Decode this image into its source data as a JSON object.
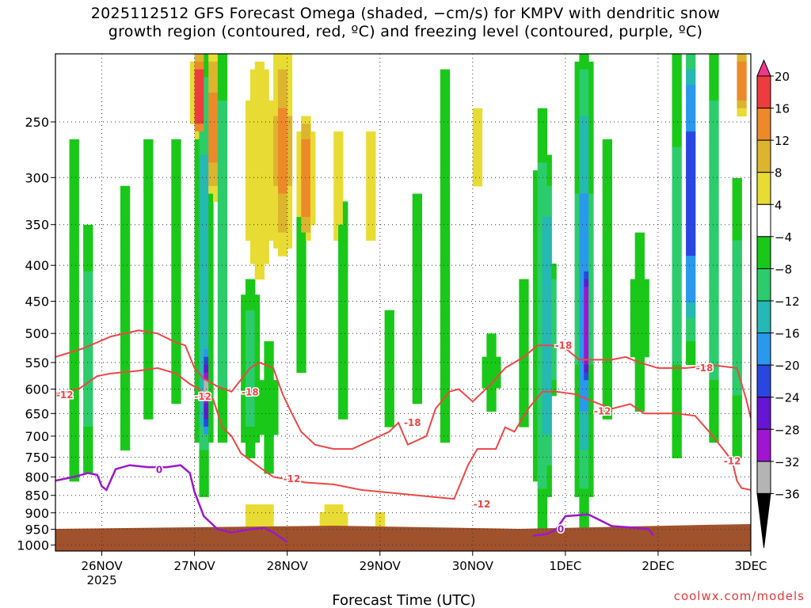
{
  "title": {
    "line1": "2025112512 GFS Forecast Omega (shaded, −cm/s) for KMPV with dendritic snow",
    "line2": "growth region (contoured, red, ºC) and freezing level (contoured, purple, ºC)"
  },
  "credit": "coolwx.com/models",
  "chart_data": {
    "type": "heatmap",
    "xlabel": "Forecast Time (UTC)",
    "x_range": [
      -0.5,
      7.0
    ],
    "x_ticks": [
      {
        "day": 0,
        "label": "26NOV",
        "sublabel": "2025"
      },
      {
        "day": 1,
        "label": "27NOV",
        "sublabel": ""
      },
      {
        "day": 2,
        "label": "28NOV",
        "sublabel": ""
      },
      {
        "day": 3,
        "label": "29NOV",
        "sublabel": ""
      },
      {
        "day": 4,
        "label": "30NOV",
        "sublabel": ""
      },
      {
        "day": 5,
        "label": "1DEC",
        "sublabel": ""
      },
      {
        "day": 6,
        "label": "2DEC",
        "sublabel": ""
      },
      {
        "day": 7,
        "label": "3DEC",
        "sublabel": ""
      }
    ],
    "ylabel": "",
    "y_scale": "log-pressure",
    "y_range_hpa": [
      200,
      1020
    ],
    "y_ticks": [
      250,
      300,
      350,
      400,
      450,
      500,
      550,
      600,
      650,
      700,
      750,
      800,
      850,
      900,
      950,
      1000
    ],
    "grid": true,
    "colorbar": {
      "position": "right",
      "ticks": [
        "20",
        "16",
        "12",
        "8",
        "4",
        "−4",
        "−8",
        "−12",
        "−16",
        "−20",
        "−24",
        "−28",
        "−32",
        "−36"
      ],
      "bins": [
        {
          "range": "20+",
          "color": "#f0368c"
        },
        {
          "range": "16 to 20",
          "color": "#ee3c3c"
        },
        {
          "range": "12 to 16",
          "color": "#ec8a2a"
        },
        {
          "range": "8 to 12",
          "color": "#dcb42e"
        },
        {
          "range": "4 to 8",
          "color": "#e8dc34"
        },
        {
          "range": "-4 to 4",
          "color": "#ffffff"
        },
        {
          "range": "-8 to -4",
          "color": "#19c819"
        },
        {
          "range": "-12 to -8",
          "color": "#2ccc6c"
        },
        {
          "range": "-16 to -12",
          "color": "#26b8b2"
        },
        {
          "range": "-20 to -16",
          "color": "#2a98ec"
        },
        {
          "range": "-24 to -20",
          "color": "#2a46e0"
        },
        {
          "range": "-28 to -24",
          "color": "#6416d2"
        },
        {
          "range": "-32 to -28",
          "color": "#a014d2"
        },
        {
          "range": "-36 to -32",
          "color": "#b4b4b4"
        },
        {
          "range": "< -36",
          "color": "#000000"
        }
      ]
    },
    "omega_features": [
      {
        "day": -0.3,
        "p_top": 250,
        "p_bot": 850,
        "w": 0.08,
        "val": -8
      },
      {
        "day": -0.15,
        "p_top": 350,
        "p_bot": 800,
        "w": 0.05,
        "val": -12
      },
      {
        "day": 0.25,
        "p_top": 300,
        "p_bot": 750,
        "w": 0.08,
        "val": -8
      },
      {
        "day": 0.5,
        "p_top": 250,
        "p_bot": 700,
        "w": 0.07,
        "val": -8
      },
      {
        "day": 0.8,
        "p_top": 250,
        "p_bot": 650,
        "w": 0.07,
        "val": -8
      },
      {
        "day": 1.1,
        "p_top": 200,
        "p_bot": 800,
        "w": 0.09,
        "val": -14
      },
      {
        "day": 1.1,
        "p_top": 450,
        "p_bot": 750,
        "w": 0.04,
        "val": -22
      },
      {
        "day": 1.12,
        "p_top": 520,
        "p_bot": 700,
        "w": 0.02,
        "val": -30
      },
      {
        "day": 1.12,
        "p_top": 550,
        "p_bot": 650,
        "w": 0.012,
        "val": -40
      },
      {
        "day": 1.3,
        "p_top": 200,
        "p_bot": 700,
        "w": 0.07,
        "val": -12
      },
      {
        "day": 1.6,
        "p_top": 420,
        "p_bot": 750,
        "w": 0.12,
        "val": -10
      },
      {
        "day": 1.8,
        "p_top": 500,
        "p_bot": 800,
        "w": 0.1,
        "val": -8
      },
      {
        "day": 2.15,
        "p_top": 300,
        "p_bot": 600,
        "w": 0.05,
        "val": -8
      },
      {
        "day": 2.6,
        "p_top": 300,
        "p_bot": 700,
        "w": 0.05,
        "val": -8
      },
      {
        "day": 3.1,
        "p_top": 450,
        "p_bot": 700,
        "w": 0.06,
        "val": -8
      },
      {
        "day": 3.4,
        "p_top": 300,
        "p_bot": 650,
        "w": 0.06,
        "val": -8
      },
      {
        "day": 3.7,
        "p_top": 200,
        "p_bot": 760,
        "w": 0.07,
        "val": -8
      },
      {
        "day": 4.2,
        "p_top": 500,
        "p_bot": 650,
        "w": 0.1,
        "val": -8
      },
      {
        "day": 4.55,
        "p_top": 400,
        "p_bot": 700,
        "w": 0.06,
        "val": -8
      },
      {
        "day": 4.75,
        "p_top": 250,
        "p_bot": 950,
        "w": 0.09,
        "val": -12
      },
      {
        "day": 4.8,
        "p_top": 300,
        "p_bot": 800,
        "w": 0.05,
        "val": -20
      },
      {
        "day": 4.85,
        "p_top": 400,
        "p_bot": 600,
        "w": 0.03,
        "val": -26
      },
      {
        "day": 5.2,
        "p_top": 200,
        "p_bot": 880,
        "w": 0.1,
        "val": -16
      },
      {
        "day": 5.2,
        "p_top": 250,
        "p_bot": 800,
        "w": 0.06,
        "val": -22
      },
      {
        "day": 5.2,
        "p_top": 350,
        "p_bot": 700,
        "w": 0.035,
        "val": -30
      },
      {
        "day": 5.22,
        "p_top": 400,
        "p_bot": 600,
        "w": 0.018,
        "val": -34
      },
      {
        "day": 5.22,
        "p_top": 430,
        "p_bot": 560,
        "w": 0.01,
        "val": -40
      },
      {
        "day": 5.45,
        "p_top": 250,
        "p_bot": 700,
        "w": 0.06,
        "val": -8
      },
      {
        "day": 5.8,
        "p_top": 350,
        "p_bot": 650,
        "w": 0.1,
        "val": -8
      },
      {
        "day": 6.2,
        "p_top": 200,
        "p_bot": 750,
        "w": 0.07,
        "val": -10
      },
      {
        "day": 6.35,
        "p_top": 200,
        "p_bot": 500,
        "w": 0.05,
        "val": -28
      },
      {
        "day": 6.6,
        "p_top": 200,
        "p_bot": 700,
        "w": 0.06,
        "val": -12
      },
      {
        "day": 6.6,
        "p_top": 200,
        "p_bot": 420,
        "w": 0.03,
        "val": -20
      },
      {
        "day": 6.85,
        "p_top": 300,
        "p_bot": 750,
        "w": 0.07,
        "val": -10
      },
      {
        "day": 1.05,
        "p_top": 200,
        "p_bot": 260,
        "w": 0.07,
        "val": 22
      },
      {
        "day": 1.2,
        "p_top": 200,
        "p_bot": 320,
        "w": 0.08,
        "val": 14
      },
      {
        "day": 1.7,
        "p_top": 200,
        "p_bot": 420,
        "w": 0.18,
        "val": 8
      },
      {
        "day": 1.95,
        "p_top": 200,
        "p_bot": 380,
        "w": 0.12,
        "val": 13
      },
      {
        "day": 2.2,
        "p_top": 250,
        "p_bot": 360,
        "w": 0.08,
        "val": 17
      },
      {
        "day": 2.55,
        "p_top": 250,
        "p_bot": 380,
        "w": 0.12,
        "val": 6
      },
      {
        "day": 2.9,
        "p_top": 250,
        "p_bot": 380,
        "w": 0.1,
        "val": 6
      },
      {
        "day": 4.05,
        "p_top": 220,
        "p_bot": 330,
        "w": 0.05,
        "val": 6
      },
      {
        "day": 4.5,
        "p_top": 220,
        "p_bot": 330,
        "w": 0.02,
        "val": 17
      },
      {
        "day": 6.35,
        "p_top": 200,
        "p_bot": 230,
        "w": 0.04,
        "val": 14
      },
      {
        "day": 6.9,
        "p_top": 200,
        "p_bot": 240,
        "w": 0.05,
        "val": 18
      },
      {
        "day": 1.7,
        "p_top": 860,
        "p_bot": 960,
        "w": 0.3,
        "val": 6
      },
      {
        "day": 2.5,
        "p_top": 870,
        "p_bot": 960,
        "w": 0.35,
        "val": 5
      },
      {
        "day": 3.0,
        "p_top": 900,
        "p_bot": 965,
        "w": 0.15,
        "val": 5
      },
      {
        "day": 3.8,
        "p_top": 700,
        "p_bot": 800,
        "w": 0.04,
        "val": 5
      }
    ],
    "series": [
      {
        "name": "-18",
        "color": "#ee4646",
        "points": [
          [
            -0.5,
            540
          ],
          [
            -0.2,
            525
          ],
          [
            0.1,
            505
          ],
          [
            0.4,
            495
          ],
          [
            0.6,
            500
          ],
          [
            0.8,
            515
          ],
          [
            0.9,
            520
          ],
          [
            1.0,
            560
          ],
          [
            1.1,
            580
          ],
          [
            1.25,
            595
          ],
          [
            1.4,
            605
          ],
          [
            1.6,
            560
          ],
          [
            1.7,
            550
          ],
          [
            1.85,
            560
          ],
          [
            1.95,
            610
          ],
          [
            2.05,
            650
          ],
          [
            2.15,
            690
          ],
          [
            2.3,
            720
          ],
          [
            2.5,
            730
          ],
          [
            2.7,
            730
          ],
          [
            2.9,
            710
          ],
          [
            3.1,
            690
          ],
          [
            3.2,
            670
          ],
          [
            3.3,
            720
          ],
          [
            3.5,
            700
          ],
          [
            3.6,
            640
          ],
          [
            3.75,
            605
          ],
          [
            3.85,
            600
          ],
          [
            4.0,
            625
          ],
          [
            4.2,
            590
          ],
          [
            4.35,
            560
          ],
          [
            4.55,
            540
          ],
          [
            4.7,
            520
          ],
          [
            4.85,
            520
          ],
          [
            5.0,
            525
          ],
          [
            5.15,
            545
          ],
          [
            5.5,
            545
          ],
          [
            5.65,
            540
          ],
          [
            5.8,
            550
          ],
          [
            6.0,
            560
          ],
          [
            6.3,
            560
          ],
          [
            6.6,
            555
          ],
          [
            6.85,
            560
          ],
          [
            6.95,
            620
          ],
          [
            7.0,
            660
          ]
        ]
      },
      {
        "name": "-12",
        "color": "#ee4646",
        "points": [
          [
            -0.5,
            610
          ],
          [
            -0.25,
            600
          ],
          [
            -0.05,
            575
          ],
          [
            0.1,
            570
          ],
          [
            0.4,
            565
          ],
          [
            0.6,
            560
          ],
          [
            0.8,
            570
          ],
          [
            0.95,
            590
          ],
          [
            1.05,
            600
          ],
          [
            1.1,
            615
          ],
          [
            1.2,
            620
          ],
          [
            1.3,
            680
          ],
          [
            1.4,
            700
          ],
          [
            1.5,
            740
          ],
          [
            1.7,
            775
          ],
          [
            1.85,
            800
          ],
          [
            2.2,
            815
          ],
          [
            2.5,
            820
          ],
          [
            2.8,
            835
          ],
          [
            3.2,
            845
          ],
          [
            3.6,
            855
          ],
          [
            3.8,
            860
          ],
          [
            3.95,
            770
          ],
          [
            4.05,
            730
          ],
          [
            4.25,
            730
          ],
          [
            4.35,
            680
          ],
          [
            4.45,
            690
          ],
          [
            4.6,
            640
          ],
          [
            4.75,
            605
          ],
          [
            4.9,
            605
          ],
          [
            5.1,
            610
          ],
          [
            5.3,
            625
          ],
          [
            5.5,
            640
          ],
          [
            5.7,
            630
          ],
          [
            5.85,
            650
          ],
          [
            6.2,
            650
          ],
          [
            6.4,
            655
          ],
          [
            6.55,
            690
          ],
          [
            6.7,
            730
          ],
          [
            6.8,
            760
          ],
          [
            6.85,
            810
          ],
          [
            6.9,
            830
          ],
          [
            7.0,
            835
          ]
        ]
      }
    ],
    "freezing_level": {
      "name": "0",
      "color": "#9b19c8",
      "segments": [
        [
          [
            -0.5,
            810
          ],
          [
            -0.3,
            800
          ],
          [
            -0.15,
            790
          ],
          [
            -0.05,
            795
          ],
          [
            0.0,
            825
          ],
          [
            0.05,
            835
          ],
          [
            0.15,
            780
          ],
          [
            0.3,
            770
          ],
          [
            0.5,
            775
          ],
          [
            0.7,
            775
          ],
          [
            0.85,
            770
          ],
          [
            0.95,
            790
          ],
          [
            1.0,
            840
          ],
          [
            1.1,
            910
          ],
          [
            1.25,
            950
          ],
          [
            1.4,
            960
          ],
          [
            1.6,
            950
          ],
          [
            1.75,
            945
          ],
          [
            1.85,
            960
          ],
          [
            2.0,
            990
          ]
        ],
        [
          [
            4.65,
            970
          ],
          [
            4.8,
            965
          ],
          [
            4.9,
            950
          ],
          [
            5.0,
            910
          ],
          [
            5.25,
            905
          ],
          [
            5.5,
            940
          ],
          [
            5.75,
            945
          ],
          [
            5.9,
            950
          ],
          [
            5.95,
            970
          ]
        ]
      ]
    },
    "contour_labels": [
      {
        "text": "-12",
        "day": -0.4,
        "p": 612,
        "color": "#ee4646"
      },
      {
        "text": "-12",
        "day": 1.09,
        "p": 615,
        "color": "#ee4646"
      },
      {
        "text": "-18",
        "day": 1.6,
        "p": 606,
        "color": "#ee4646"
      },
      {
        "text": "-12",
        "day": 2.05,
        "p": 805,
        "color": "#ee4646"
      },
      {
        "text": "-18",
        "day": 3.35,
        "p": 670,
        "color": "#ee4646"
      },
      {
        "text": "-12",
        "day": 4.1,
        "p": 875,
        "color": "#ee4646"
      },
      {
        "text": "-18",
        "day": 4.98,
        "p": 520,
        "color": "#ee4646"
      },
      {
        "text": "-12",
        "day": 5.4,
        "p": 645,
        "color": "#ee4646"
      },
      {
        "text": "-18",
        "day": 6.5,
        "p": 560,
        "color": "#ee4646"
      },
      {
        "text": "-12",
        "day": 6.8,
        "p": 760,
        "color": "#ee4646"
      },
      {
        "text": "0",
        "day": 0.62,
        "p": 782,
        "color": "#9b19c8"
      },
      {
        "text": "0",
        "day": 4.95,
        "p": 950,
        "color": "#9b19c8"
      }
    ],
    "ground_color": "#a0522d"
  }
}
